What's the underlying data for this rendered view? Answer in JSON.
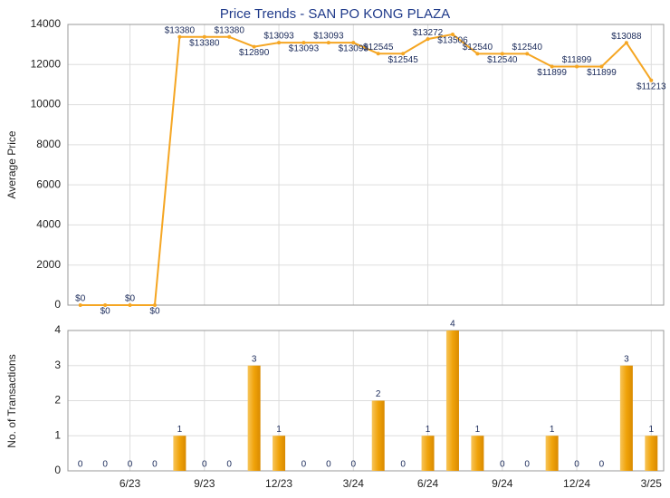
{
  "chart_data": [
    {
      "type": "line",
      "title": "Price Trends - SAN PO KONG PLAZA",
      "y_label": "Average Price",
      "color": "#f5a623",
      "values": [
        0,
        0,
        0,
        0,
        13380,
        13380,
        13380,
        12890,
        13093,
        13093,
        13093,
        13093,
        12545,
        12545,
        13272,
        13506,
        12540,
        12540,
        12540,
        11899,
        11899,
        11899,
        13088,
        11213
      ],
      "value_labels": [
        "$0",
        "$0",
        "$0",
        "$0",
        "$13380",
        "$13380",
        "$13380",
        "$12890",
        "$13093",
        "$13093",
        "$13093",
        "$13093",
        "$12545",
        "$12545",
        "$13272",
        "$13506",
        "$12540",
        "$12540",
        "$12540",
        "$11899",
        "$11899",
        "$11899",
        "$13088",
        "$11213"
      ],
      "ylim": [
        0,
        14000
      ],
      "yticks": [
        0,
        2000,
        4000,
        6000,
        8000,
        10000,
        12000,
        14000
      ],
      "grid": true
    },
    {
      "type": "bar",
      "y_label": "No. of Transactions",
      "color": "#f0a30a",
      "categories": [
        null,
        null,
        "6/23",
        null,
        null,
        "9/23",
        null,
        null,
        "12/23",
        null,
        null,
        "3/24",
        null,
        null,
        "6/24",
        null,
        null,
        "9/24",
        null,
        null,
        "12/24",
        null,
        null,
        "3/25"
      ],
      "values": [
        0,
        0,
        0,
        0,
        1,
        0,
        0,
        3,
        1,
        0,
        0,
        0,
        2,
        0,
        1,
        4,
        1,
        0,
        0,
        1,
        0,
        0,
        3,
        1
      ],
      "ylim": [
        0,
        4
      ],
      "yticks": [
        0,
        1,
        2,
        3,
        4
      ],
      "grid": true
    }
  ]
}
